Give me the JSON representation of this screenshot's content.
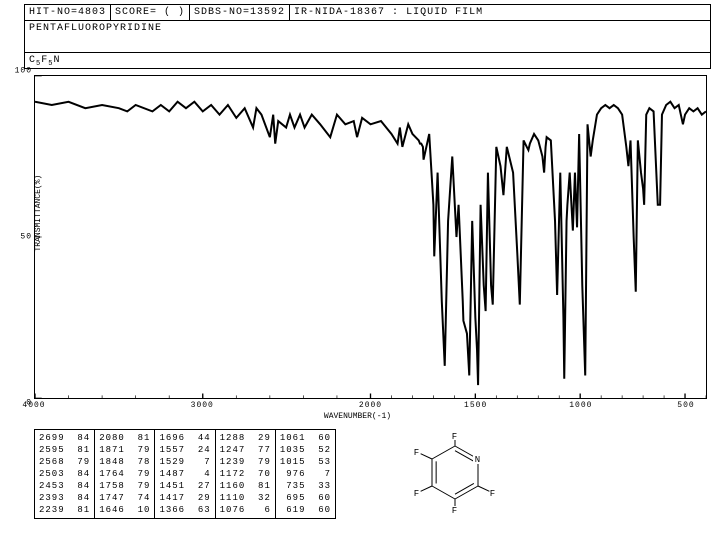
{
  "header": {
    "hit_no": "HIT-NO=4803",
    "score": "SCORE=  (  )",
    "sdbs_no": "SDBS-NO=13592",
    "ir_info": "IR-NIDA-18367 : LIQUID FILM"
  },
  "compound_name": "PENTAFLUOROPYRIDINE",
  "formula_plain": "C5F5N",
  "formula_parts": [
    "C",
    "5",
    "F",
    "5",
    "N"
  ],
  "chart": {
    "type": "line",
    "xlabel": "WAVENUMBER(-1)",
    "ylabel": "TRANSMITTANCE(%)",
    "xlim": [
      4000,
      400
    ],
    "ylim": [
      0,
      100
    ],
    "xticks": [
      4000,
      3000,
      2000,
      1500,
      1000,
      500
    ],
    "yticks": [
      0,
      50,
      100
    ],
    "xtick_minor_step_left": 200,
    "xtick_minor_step_right": 100,
    "x_scale_break": 2000,
    "background_color": "#ffffff",
    "line_color": "#000000",
    "border_color": "#000000",
    "line_width": 1,
    "spectrum": [
      [
        4000,
        92
      ],
      [
        3900,
        91
      ],
      [
        3800,
        92
      ],
      [
        3700,
        90
      ],
      [
        3600,
        91
      ],
      [
        3500,
        90
      ],
      [
        3450,
        89
      ],
      [
        3400,
        91
      ],
      [
        3300,
        89
      ],
      [
        3250,
        91
      ],
      [
        3200,
        89
      ],
      [
        3150,
        92
      ],
      [
        3100,
        90
      ],
      [
        3050,
        92
      ],
      [
        3000,
        89
      ],
      [
        2950,
        91
      ],
      [
        2900,
        88
      ],
      [
        2850,
        91
      ],
      [
        2800,
        87
      ],
      [
        2750,
        90
      ],
      [
        2700,
        84
      ],
      [
        2680,
        90
      ],
      [
        2650,
        88
      ],
      [
        2600,
        81
      ],
      [
        2580,
        88
      ],
      [
        2568,
        79
      ],
      [
        2550,
        86
      ],
      [
        2503,
        84
      ],
      [
        2480,
        88
      ],
      [
        2453,
        84
      ],
      [
        2420,
        88
      ],
      [
        2393,
        84
      ],
      [
        2350,
        88
      ],
      [
        2300,
        85
      ],
      [
        2240,
        81
      ],
      [
        2200,
        88
      ],
      [
        2150,
        85
      ],
      [
        2100,
        86
      ],
      [
        2080,
        81
      ],
      [
        2050,
        87
      ],
      [
        2000,
        85
      ],
      [
        1950,
        86
      ],
      [
        1900,
        82
      ],
      [
        1871,
        79
      ],
      [
        1860,
        84
      ],
      [
        1848,
        78
      ],
      [
        1820,
        85
      ],
      [
        1800,
        82
      ],
      [
        1770,
        80
      ],
      [
        1764,
        79
      ],
      [
        1758,
        79
      ],
      [
        1750,
        78
      ],
      [
        1747,
        74
      ],
      [
        1720,
        82
      ],
      [
        1700,
        60
      ],
      [
        1696,
        44
      ],
      [
        1680,
        70
      ],
      [
        1660,
        30
      ],
      [
        1646,
        10
      ],
      [
        1630,
        55
      ],
      [
        1610,
        75
      ],
      [
        1590,
        50
      ],
      [
        1580,
        60
      ],
      [
        1560,
        30
      ],
      [
        1557,
        24
      ],
      [
        1540,
        20
      ],
      [
        1529,
        7
      ],
      [
        1515,
        55
      ],
      [
        1500,
        25
      ],
      [
        1492,
        15
      ],
      [
        1487,
        4
      ],
      [
        1475,
        60
      ],
      [
        1460,
        35
      ],
      [
        1451,
        27
      ],
      [
        1440,
        70
      ],
      [
        1425,
        35
      ],
      [
        1417,
        29
      ],
      [
        1400,
        78
      ],
      [
        1380,
        72
      ],
      [
        1366,
        63
      ],
      [
        1350,
        78
      ],
      [
        1320,
        70
      ],
      [
        1300,
        45
      ],
      [
        1288,
        29
      ],
      [
        1270,
        80
      ],
      [
        1255,
        78
      ],
      [
        1247,
        77
      ],
      [
        1240,
        79
      ],
      [
        1220,
        82
      ],
      [
        1200,
        80
      ],
      [
        1180,
        75
      ],
      [
        1172,
        70
      ],
      [
        1165,
        78
      ],
      [
        1160,
        81
      ],
      [
        1140,
        80
      ],
      [
        1120,
        55
      ],
      [
        1110,
        32
      ],
      [
        1095,
        70
      ],
      [
        1080,
        25
      ],
      [
        1076,
        6
      ],
      [
        1065,
        55
      ],
      [
        1061,
        60
      ],
      [
        1050,
        70
      ],
      [
        1040,
        58
      ],
      [
        1035,
        52
      ],
      [
        1025,
        70
      ],
      [
        1015,
        53
      ],
      [
        1005,
        82
      ],
      [
        990,
        35
      ],
      [
        976,
        7
      ],
      [
        965,
        85
      ],
      [
        950,
        75
      ],
      [
        940,
        80
      ],
      [
        920,
        88
      ],
      [
        900,
        90
      ],
      [
        880,
        91
      ],
      [
        860,
        90
      ],
      [
        840,
        91
      ],
      [
        820,
        90
      ],
      [
        800,
        88
      ],
      [
        780,
        78
      ],
      [
        770,
        72
      ],
      [
        760,
        80
      ],
      [
        745,
        50
      ],
      [
        735,
        33
      ],
      [
        725,
        80
      ],
      [
        710,
        70
      ],
      [
        700,
        65
      ],
      [
        695,
        60
      ],
      [
        685,
        88
      ],
      [
        670,
        90
      ],
      [
        650,
        89
      ],
      [
        630,
        60
      ],
      [
        619,
        60
      ],
      [
        610,
        88
      ],
      [
        590,
        91
      ],
      [
        570,
        92
      ],
      [
        550,
        90
      ],
      [
        530,
        91
      ],
      [
        510,
        85
      ],
      [
        500,
        88
      ],
      [
        480,
        90
      ],
      [
        460,
        89
      ],
      [
        440,
        90
      ],
      [
        420,
        88
      ],
      [
        400,
        89
      ]
    ]
  },
  "peak_table": {
    "columns": [
      [
        [
          2699,
          84
        ],
        [
          2595,
          81
        ],
        [
          2568,
          79
        ],
        [
          2503,
          84
        ],
        [
          2453,
          84
        ],
        [
          2393,
          84
        ],
        [
          2239,
          81
        ]
      ],
      [
        [
          2080,
          81
        ],
        [
          1871,
          79
        ],
        [
          1848,
          78
        ],
        [
          1764,
          79
        ],
        [
          1758,
          79
        ],
        [
          1747,
          74
        ],
        [
          1646,
          10
        ]
      ],
      [
        [
          1696,
          44
        ],
        [
          1557,
          24
        ],
        [
          1529,
          7
        ],
        [
          1487,
          4
        ],
        [
          1451,
          27
        ],
        [
          1417,
          29
        ],
        [
          1366,
          63
        ]
      ],
      [
        [
          1288,
          29
        ],
        [
          1247,
          77
        ],
        [
          1239,
          79
        ],
        [
          1172,
          70
        ],
        [
          1160,
          81
        ],
        [
          1110,
          32
        ],
        [
          1076,
          6
        ]
      ],
      [
        [
          1061,
          60
        ],
        [
          1035,
          52
        ],
        [
          1015,
          53
        ],
        [
          976,
          7
        ],
        [
          735,
          33
        ],
        [
          695,
          60
        ],
        [
          619,
          60
        ]
      ]
    ],
    "font_size": 9,
    "text_color": "#000000",
    "border_color": "#000000"
  },
  "structure": {
    "labels": [
      "F",
      "F",
      "F",
      "F",
      "F",
      "N"
    ],
    "ring_positions": [
      [
        55,
        12
      ],
      [
        78,
        25
      ],
      [
        78,
        52
      ],
      [
        55,
        65
      ],
      [
        32,
        52
      ],
      [
        32,
        25
      ]
    ],
    "F_positions": [
      [
        55,
        2
      ],
      [
        93,
        18
      ],
      [
        93,
        59
      ],
      [
        55,
        76
      ],
      [
        17,
        59
      ],
      [
        17,
        18
      ]
    ],
    "bond_color": "#000000",
    "text_color": "#000000",
    "font_size": 9
  }
}
